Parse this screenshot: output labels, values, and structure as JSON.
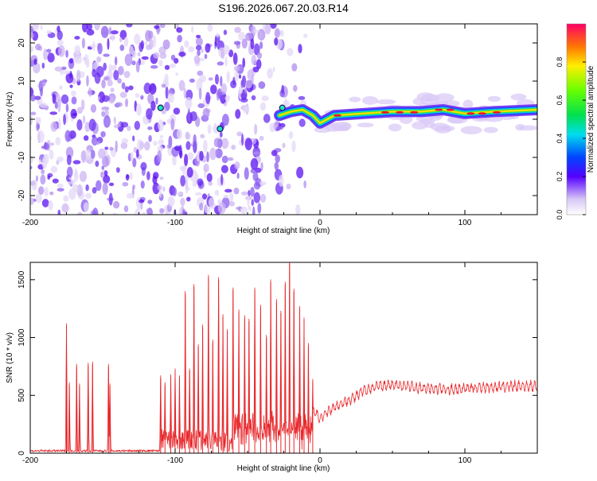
{
  "title": "S196.2026.067.20.03.R14",
  "chart_data": [
    {
      "type": "heatmap",
      "xlabel": "Height of straight line (km)",
      "ylabel": "Frequency (Hz)",
      "xlim": [
        -200,
        150
      ],
      "ylim": [
        -25,
        25
      ],
      "x_ticks": [
        -200,
        -100,
        0,
        100
      ],
      "x_tick_labels": [
        "-200",
        "-100",
        "0",
        "100"
      ],
      "y_ticks": [
        -20,
        -10,
        0,
        10,
        20
      ],
      "y_tick_labels": [
        "-20",
        "-10",
        "0",
        "10",
        "20"
      ],
      "colorbar": {
        "label": "Normalized spectral amplitude",
        "range": [
          0,
          1
        ],
        "ticks": [
          0,
          0.2,
          0.4,
          0.6,
          0.8
        ],
        "tick_labels": [
          "0.0",
          "0.2",
          "0.4",
          "0.6",
          "0.8"
        ]
      },
      "ridge": {
        "x": [
          -28,
          -20,
          -12,
          -5,
          0,
          10,
          30,
          50,
          70,
          85,
          100,
          120,
          150
        ],
        "y": [
          1,
          2,
          2.5,
          1,
          -1,
          1,
          1.5,
          2,
          2,
          2.5,
          1.5,
          2,
          2.5
        ]
      },
      "markers": [
        {
          "x": -110,
          "y": 3
        },
        {
          "x": -69,
          "y": -2.5
        },
        {
          "x": -26,
          "y": 3
        }
      ]
    },
    {
      "type": "line",
      "xlabel": "Height of straight line (km)",
      "ylabel": "SNR (10 * v/v)",
      "xlim": [
        -200,
        150
      ],
      "ylim": [
        0,
        1650
      ],
      "x_ticks": [
        -200,
        -100,
        0,
        100
      ],
      "x_tick_labels": [
        "-200",
        "-100",
        "0",
        "100"
      ],
      "y_ticks": [
        0,
        500,
        1000,
        1500
      ],
      "y_tick_labels": [
        "0",
        "500",
        "1000",
        "1500"
      ],
      "color": "#e8262a",
      "spikes": [
        {
          "x": -175,
          "y": 1100
        },
        {
          "x": -173,
          "y": 590
        },
        {
          "x": -168,
          "y": 750
        },
        {
          "x": -166,
          "y": 580
        },
        {
          "x": -160,
          "y": 760
        },
        {
          "x": -157,
          "y": 770
        },
        {
          "x": -146,
          "y": 750
        },
        {
          "x": -145,
          "y": 580
        },
        {
          "x": -110,
          "y": 650
        },
        {
          "x": -107,
          "y": 590
        },
        {
          "x": -103,
          "y": 660
        },
        {
          "x": -100,
          "y": 710
        },
        {
          "x": -97,
          "y": 650
        },
        {
          "x": -93,
          "y": 1380
        },
        {
          "x": -90,
          "y": 710
        },
        {
          "x": -87,
          "y": 1440
        },
        {
          "x": -84,
          "y": 920
        },
        {
          "x": -81,
          "y": 1090
        },
        {
          "x": -77,
          "y": 1520
        },
        {
          "x": -74,
          "y": 960
        },
        {
          "x": -70,
          "y": 1500
        },
        {
          "x": -67,
          "y": 1180
        },
        {
          "x": -64,
          "y": 1050
        },
        {
          "x": -60,
          "y": 1410
        },
        {
          "x": -56,
          "y": 1220
        },
        {
          "x": -52,
          "y": 1170
        },
        {
          "x": -49,
          "y": 1140
        },
        {
          "x": -45,
          "y": 1410
        },
        {
          "x": -41,
          "y": 1260
        },
        {
          "x": -37,
          "y": 1000
        },
        {
          "x": -34,
          "y": 1480
        },
        {
          "x": -30,
          "y": 1310
        },
        {
          "x": -27,
          "y": 1210
        },
        {
          "x": -24,
          "y": 1460
        },
        {
          "x": -21,
          "y": 1640
        },
        {
          "x": -18,
          "y": 1400
        },
        {
          "x": -14,
          "y": 1250
        },
        {
          "x": -11,
          "y": 1150
        },
        {
          "x": -8,
          "y": 930
        },
        {
          "x": -5,
          "y": 620
        }
      ],
      "envelope": {
        "x": [
          -5,
          0,
          5,
          10,
          15,
          20,
          25,
          30,
          40,
          50,
          60,
          70,
          80,
          90,
          100,
          110,
          120,
          130,
          140,
          150
        ],
        "y": [
          370,
          300,
          360,
          400,
          430,
          460,
          490,
          540,
          580,
          590,
          580,
          560,
          560,
          550,
          560,
          570,
          570,
          580,
          580,
          580
        ]
      }
    }
  ]
}
